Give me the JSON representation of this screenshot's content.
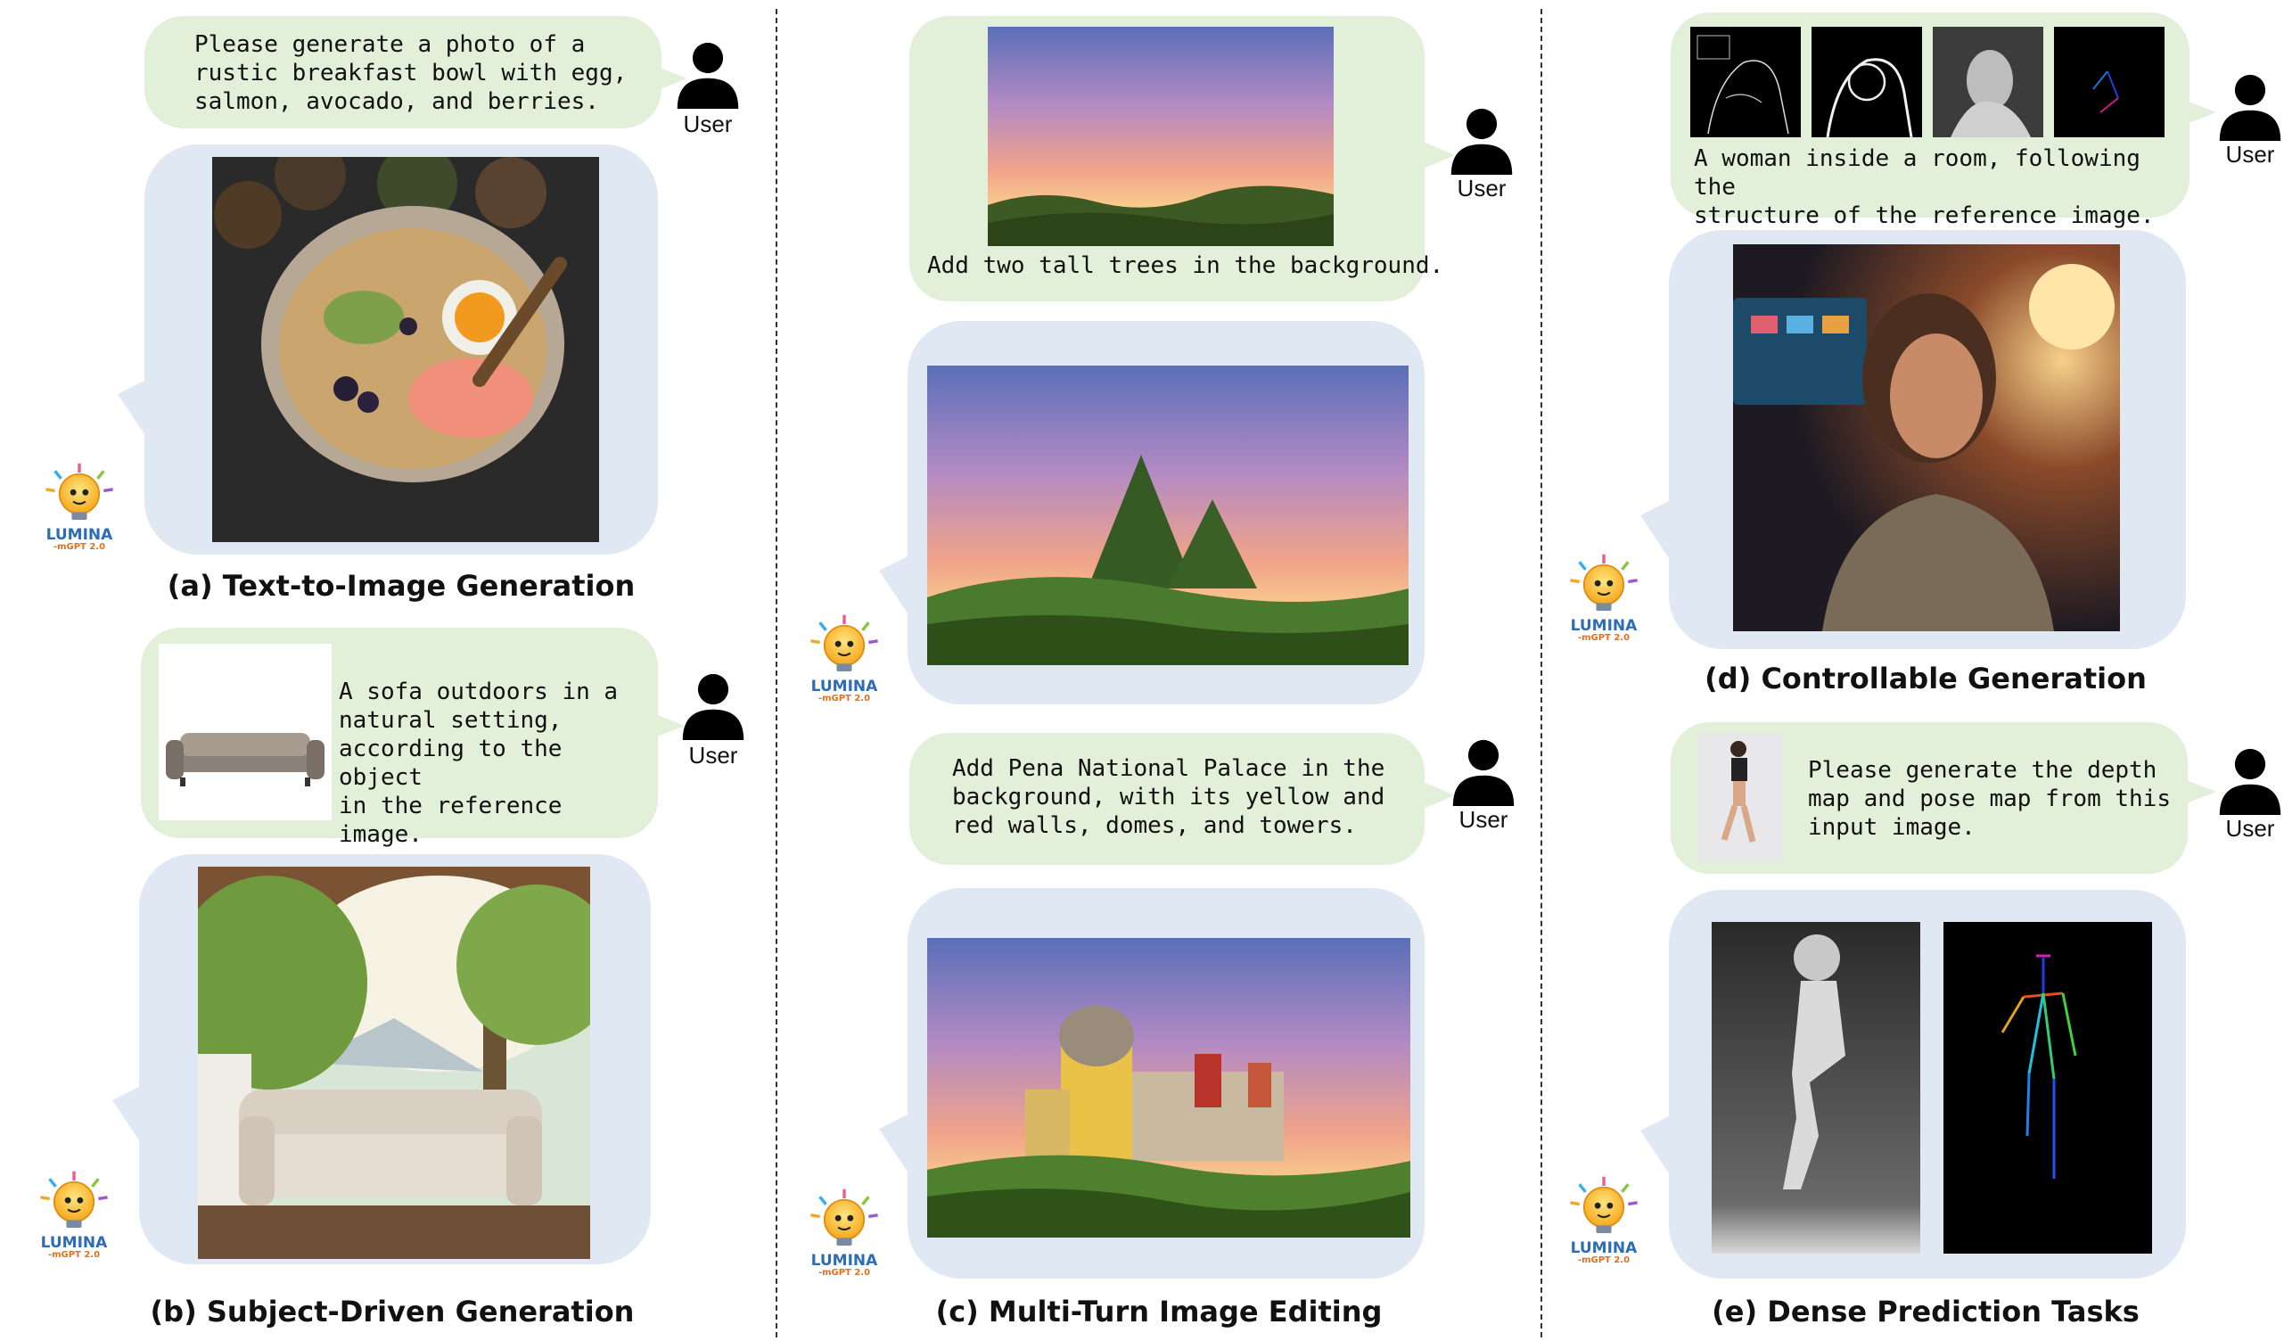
{
  "user_label": "User",
  "logo": {
    "word": "LUMINA",
    "sub": "-mGPT 2.0"
  },
  "panels": {
    "a": {
      "caption": "(a) Text-to-Image Generation",
      "prompt": "Please generate a photo of a\nrustic breakfast bowl with egg,\nsalmon, avocado, and berries."
    },
    "b": {
      "caption": "(b) Subject-Driven Generation",
      "prompt": "A sofa outdoors in a\nnatural setting,\naccording to the object\nin the reference image."
    },
    "c": {
      "caption": "(c) Multi-Turn Image Editing",
      "prompt1": "Add two tall trees in the background.",
      "prompt2": "Add Pena National Palace in the\nbackground, with its yellow and\nred walls, domes, and towers."
    },
    "d": {
      "caption": "(d) Controllable Generation",
      "prompt": "A woman inside a room, following the\nstructure of the reference image."
    },
    "e": {
      "caption": "(e) Dense Prediction Tasks",
      "prompt": "Please generate the depth\nmap and pose map from this\ninput image."
    }
  },
  "colors": {
    "user_bubble": "#e2efd9",
    "bot_bubble": "#dfe8f3",
    "text": "#111111"
  }
}
